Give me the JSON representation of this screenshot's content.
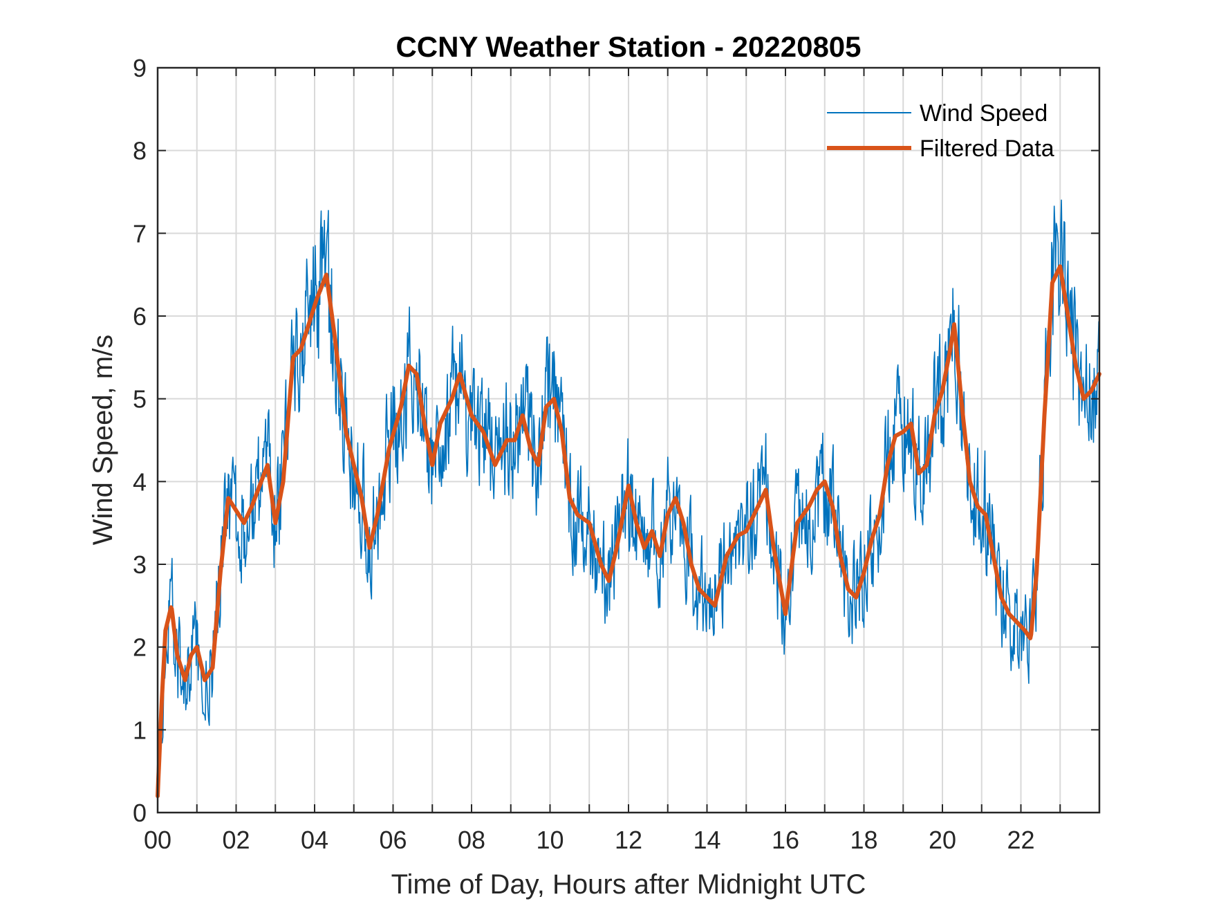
{
  "chart_data": {
    "type": "line",
    "title": "CCNY Weather Station - 20220805",
    "xlabel": "Time of Day, Hours after Midnight UTC",
    "ylabel": "Wind Speed, m/s",
    "xlim": [
      0,
      24
    ],
    "ylim": [
      0,
      9
    ],
    "grid": true,
    "legend_position": "top-right",
    "x_ticks": [
      0,
      2,
      4,
      6,
      8,
      10,
      12,
      14,
      16,
      18,
      20,
      22
    ],
    "x_tick_labels": [
      "00",
      "02",
      "04",
      "06",
      "08",
      "10",
      "12",
      "14",
      "16",
      "18",
      "20",
      "22"
    ],
    "x_minor_grid_step": 1,
    "y_ticks": [
      0,
      1,
      2,
      3,
      4,
      5,
      6,
      7,
      8,
      9
    ],
    "y_tick_labels": [
      "0",
      "1",
      "2",
      "3",
      "4",
      "5",
      "6",
      "7",
      "8",
      "9"
    ],
    "series": [
      {
        "name": "Wind Speed",
        "color": "#0072BD",
        "style": "thin-noisy",
        "spread_m_s": 1.1,
        "sampling_minutes": 1,
        "x": [
          0.0,
          0.1,
          0.2,
          0.35,
          0.5,
          0.7,
          0.85,
          1.0,
          1.2,
          1.4,
          1.6,
          1.8,
          2.0,
          2.2,
          2.4,
          2.6,
          2.8,
          3.0,
          3.2,
          3.45,
          3.65,
          3.85,
          4.05,
          4.3,
          4.5,
          4.8,
          5.0,
          5.2,
          5.4,
          5.6,
          5.9,
          6.2,
          6.4,
          6.6,
          6.8,
          7.0,
          7.2,
          7.5,
          7.7,
          8.0,
          8.3,
          8.6,
          8.9,
          9.1,
          9.3,
          9.5,
          9.7,
          9.9,
          10.1,
          10.3,
          10.5,
          10.7,
          11.0,
          11.3,
          11.5,
          11.7,
          12.0,
          12.2,
          12.4,
          12.6,
          12.8,
          13.0,
          13.2,
          13.4,
          13.6,
          13.8,
          14.0,
          14.2,
          14.5,
          14.8,
          15.0,
          15.2,
          15.5,
          15.7,
          16.0,
          16.3,
          16.6,
          16.8,
          17.0,
          17.2,
          17.4,
          17.6,
          17.8,
          18.0,
          18.2,
          18.4,
          18.6,
          18.8,
          19.0,
          19.2,
          19.4,
          19.6,
          19.8,
          20.0,
          20.2,
          20.3,
          20.5,
          20.7,
          20.9,
          21.1,
          21.3,
          21.5,
          21.7,
          21.9,
          22.1,
          22.25,
          22.4,
          22.6,
          22.8,
          23.0,
          23.2,
          23.4,
          23.6,
          23.8,
          24.0
        ],
        "values": [
          0.2,
          1.3,
          2.2,
          2.5,
          1.9,
          1.6,
          1.9,
          2.0,
          1.6,
          1.75,
          2.9,
          3.8,
          3.65,
          3.5,
          3.7,
          3.95,
          4.2,
          3.5,
          4.0,
          5.5,
          5.6,
          5.9,
          6.2,
          6.5,
          5.8,
          4.6,
          4.2,
          3.8,
          3.2,
          3.6,
          4.4,
          4.9,
          5.4,
          5.3,
          4.7,
          4.2,
          4.7,
          5.0,
          5.3,
          4.8,
          4.6,
          4.2,
          4.5,
          4.5,
          4.8,
          4.4,
          4.2,
          4.9,
          5.0,
          4.6,
          3.8,
          3.6,
          3.5,
          3.0,
          2.8,
          3.2,
          3.95,
          3.5,
          3.2,
          3.4,
          3.1,
          3.6,
          3.8,
          3.5,
          3.0,
          2.7,
          2.6,
          2.5,
          3.1,
          3.35,
          3.4,
          3.6,
          3.9,
          3.2,
          2.4,
          3.5,
          3.7,
          3.9,
          4.0,
          3.7,
          3.1,
          2.7,
          2.6,
          2.9,
          3.3,
          3.6,
          4.2,
          4.55,
          4.6,
          4.7,
          4.1,
          4.2,
          4.8,
          5.1,
          5.6,
          5.9,
          4.9,
          4.0,
          3.7,
          3.6,
          3.1,
          2.6,
          2.4,
          2.3,
          2.2,
          2.1,
          2.9,
          4.8,
          6.4,
          6.6,
          6.0,
          5.4,
          5.0,
          5.1,
          5.3
        ]
      },
      {
        "name": "Filtered Data",
        "color": "#D95319",
        "style": "thick-smooth",
        "x": [
          0.0,
          0.1,
          0.2,
          0.35,
          0.5,
          0.7,
          0.85,
          1.0,
          1.2,
          1.4,
          1.6,
          1.8,
          2.0,
          2.2,
          2.4,
          2.6,
          2.8,
          3.0,
          3.2,
          3.45,
          3.65,
          3.85,
          4.05,
          4.3,
          4.5,
          4.8,
          5.0,
          5.2,
          5.4,
          5.6,
          5.9,
          6.2,
          6.4,
          6.6,
          6.8,
          7.0,
          7.2,
          7.5,
          7.7,
          8.0,
          8.3,
          8.6,
          8.9,
          9.1,
          9.3,
          9.5,
          9.7,
          9.9,
          10.1,
          10.3,
          10.5,
          10.7,
          11.0,
          11.3,
          11.5,
          11.7,
          12.0,
          12.2,
          12.4,
          12.6,
          12.8,
          13.0,
          13.2,
          13.4,
          13.6,
          13.8,
          14.0,
          14.2,
          14.5,
          14.8,
          15.0,
          15.2,
          15.5,
          15.7,
          16.0,
          16.3,
          16.6,
          16.8,
          17.0,
          17.2,
          17.4,
          17.6,
          17.8,
          18.0,
          18.2,
          18.4,
          18.6,
          18.8,
          19.0,
          19.2,
          19.4,
          19.6,
          19.8,
          20.0,
          20.2,
          20.3,
          20.5,
          20.7,
          20.9,
          21.1,
          21.3,
          21.5,
          21.7,
          21.9,
          22.1,
          22.25,
          22.4,
          22.6,
          22.8,
          23.0,
          23.2,
          23.4,
          23.6,
          23.8,
          24.0
        ],
        "values": [
          0.2,
          1.3,
          2.2,
          2.5,
          1.9,
          1.6,
          1.9,
          2.0,
          1.6,
          1.75,
          2.9,
          3.8,
          3.65,
          3.5,
          3.7,
          3.95,
          4.2,
          3.5,
          4.0,
          5.5,
          5.6,
          5.9,
          6.2,
          6.5,
          5.8,
          4.6,
          4.2,
          3.8,
          3.2,
          3.6,
          4.4,
          4.9,
          5.4,
          5.3,
          4.7,
          4.2,
          4.7,
          5.0,
          5.3,
          4.8,
          4.6,
          4.2,
          4.5,
          4.5,
          4.8,
          4.4,
          4.2,
          4.9,
          5.0,
          4.6,
          3.8,
          3.6,
          3.5,
          3.0,
          2.8,
          3.2,
          3.95,
          3.5,
          3.2,
          3.4,
          3.1,
          3.6,
          3.8,
          3.5,
          3.0,
          2.7,
          2.6,
          2.5,
          3.1,
          3.35,
          3.4,
          3.6,
          3.9,
          3.2,
          2.4,
          3.5,
          3.7,
          3.9,
          4.0,
          3.7,
          3.1,
          2.7,
          2.6,
          2.9,
          3.3,
          3.6,
          4.2,
          4.55,
          4.6,
          4.7,
          4.1,
          4.2,
          4.8,
          5.1,
          5.6,
          5.9,
          4.9,
          4.0,
          3.7,
          3.6,
          3.1,
          2.6,
          2.4,
          2.3,
          2.2,
          2.1,
          2.9,
          4.8,
          6.4,
          6.6,
          6.0,
          5.4,
          5.0,
          5.1,
          5.3
        ]
      }
    ]
  }
}
